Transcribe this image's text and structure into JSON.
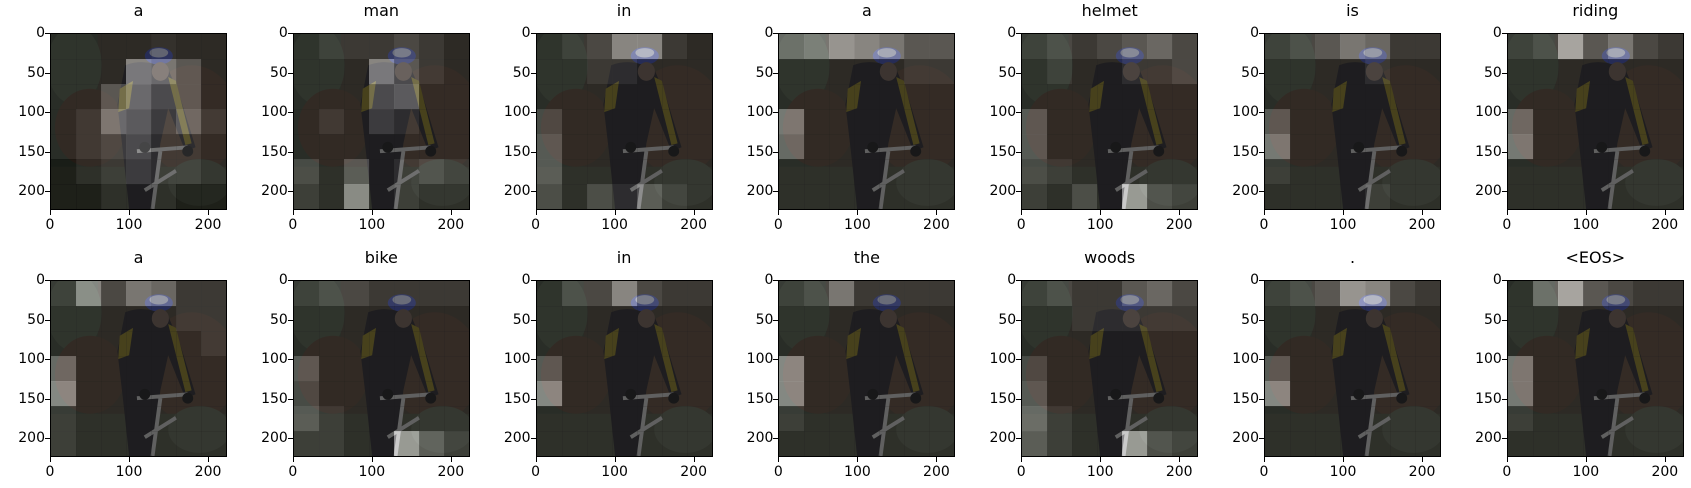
{
  "chart_data": {
    "type": "heatmap",
    "description_of_overlay": "",
    "x_ticks": [
      0,
      100,
      200
    ],
    "y_ticks": [
      0,
      50,
      100,
      150,
      200
    ],
    "xlim": [
      0,
      224
    ],
    "ylim": [
      224,
      0
    ],
    "grid_size": [
      7,
      7
    ],
    "colormap": "gray",
    "overlay_alpha": 0.6,
    "panels": [
      {
        "title": "a",
        "attention": [
          [
            0.1,
            0.1,
            0.1,
            0.1,
            0.15,
            0.1,
            0.1
          ],
          [
            0.1,
            0.1,
            0.1,
            0.7,
            0.6,
            0.4,
            0.1
          ],
          [
            0.1,
            0.1,
            0.4,
            0.6,
            0.4,
            0.4,
            0.1
          ],
          [
            0.1,
            0.2,
            0.6,
            0.5,
            0.3,
            0.5,
            0.2
          ],
          [
            0.1,
            0.2,
            0.3,
            0.4,
            0.2,
            0.2,
            0.1
          ],
          [
            0,
            0.1,
            0.2,
            0.3,
            0.2,
            0.2,
            0.1
          ],
          [
            0,
            0,
            0.1,
            0.1,
            0.1,
            0,
            0
          ]
        ]
      },
      {
        "title": "man",
        "attention": [
          [
            0.1,
            0.2,
            0.2,
            0.2,
            0.3,
            0.2,
            0.1
          ],
          [
            0.1,
            0.1,
            0.1,
            0.7,
            0.4,
            0.2,
            0.1
          ],
          [
            0.1,
            0.1,
            0.1,
            0.4,
            0.5,
            0.1,
            0.1
          ],
          [
            0.1,
            0.2,
            0.1,
            0.3,
            0.2,
            0.1,
            0.1
          ],
          [
            0.1,
            0.1,
            0.1,
            0.1,
            0.1,
            0.1,
            0.1
          ],
          [
            0.3,
            0.1,
            0.4,
            0.1,
            0.2,
            0.3,
            0.2
          ],
          [
            0.2,
            0.1,
            0.7,
            0.1,
            0.2,
            0.1,
            0.1
          ]
        ]
      },
      {
        "title": "in",
        "attention": [
          [
            0.1,
            0.2,
            0.3,
            0.7,
            0.7,
            0.2,
            0.1
          ],
          [
            0.1,
            0.1,
            0.2,
            0.2,
            0.1,
            0.1,
            0.1
          ],
          [
            0.1,
            0.1,
            0.1,
            0.1,
            0.1,
            0.1,
            0.1
          ],
          [
            0.3,
            0.1,
            0.1,
            0.1,
            0.1,
            0.1,
            0.1
          ],
          [
            0.4,
            0.1,
            0.1,
            0.1,
            0.1,
            0.1,
            0.1
          ],
          [
            0.4,
            0.1,
            0.1,
            0.1,
            0.1,
            0.1,
            0.1
          ],
          [
            0.3,
            0.1,
            0.3,
            0.2,
            0.4,
            0.2,
            0.1
          ]
        ]
      },
      {
        "title": "a",
        "attention": [
          [
            0.5,
            0.6,
            0.8,
            0.7,
            0.6,
            0.4,
            0.4
          ],
          [
            0.1,
            0.1,
            0.1,
            0.1,
            0.1,
            0.2,
            0.2
          ],
          [
            0.1,
            0.1,
            0.1,
            0.1,
            0.1,
            0.1,
            0.1
          ],
          [
            0.6,
            0.1,
            0.1,
            0.1,
            0.1,
            0.1,
            0.1
          ],
          [
            0.5,
            0.1,
            0.1,
            0.1,
            0.1,
            0.1,
            0.1
          ],
          [
            0.1,
            0.1,
            0.1,
            0.1,
            0.1,
            0.1,
            0.1
          ],
          [
            0.1,
            0.1,
            0.1,
            0.1,
            0.1,
            0.1,
            0.1
          ]
        ]
      },
      {
        "title": "helmet",
        "attention": [
          [
            0.2,
            0.3,
            0.2,
            0.3,
            0.4,
            0.5,
            0.3
          ],
          [
            0.1,
            0.2,
            0.1,
            0.1,
            0.2,
            0.2,
            0.3
          ],
          [
            0.1,
            0.1,
            0.1,
            0.1,
            0.1,
            0.1,
            0.1
          ],
          [
            0.4,
            0.1,
            0.1,
            0.1,
            0.1,
            0.1,
            0.1
          ],
          [
            0.4,
            0.1,
            0.1,
            0.1,
            0.1,
            0.1,
            0.1
          ],
          [
            0.3,
            0.2,
            0.1,
            0.1,
            0.1,
            0.1,
            0.1
          ],
          [
            0.2,
            0.1,
            0.3,
            0.1,
            0.8,
            0.3,
            0.2
          ]
        ]
      },
      {
        "title": "is",
        "attention": [
          [
            0.2,
            0.3,
            0.4,
            0.6,
            0.5,
            0.2,
            0.2
          ],
          [
            0.1,
            0.1,
            0.1,
            0.1,
            0.2,
            0.1,
            0.1
          ],
          [
            0.1,
            0.1,
            0.1,
            0.1,
            0.1,
            0.1,
            0.1
          ],
          [
            0.4,
            0.1,
            0.1,
            0.1,
            0.1,
            0.1,
            0.1
          ],
          [
            0.6,
            0.1,
            0.1,
            0.1,
            0.1,
            0.1,
            0.1
          ],
          [
            0.2,
            0.1,
            0.1,
            0.1,
            0.1,
            0.1,
            0.1
          ],
          [
            0.1,
            0.1,
            0.1,
            0.1,
            0.2,
            0.1,
            0.1
          ]
        ]
      },
      {
        "title": "riding",
        "attention": [
          [
            0.2,
            0.3,
            0.9,
            0.4,
            0.6,
            0.3,
            0.2
          ],
          [
            0.1,
            0.1,
            0.1,
            0.1,
            0.1,
            0.1,
            0.1
          ],
          [
            0.1,
            0.1,
            0.1,
            0.1,
            0.1,
            0.1,
            0.1
          ],
          [
            0.5,
            0.1,
            0.1,
            0.1,
            0.1,
            0.1,
            0.1
          ],
          [
            0.6,
            0.1,
            0.1,
            0.1,
            0.1,
            0.1,
            0.1
          ],
          [
            0.1,
            0.1,
            0.1,
            0.1,
            0.1,
            0.1,
            0.1
          ],
          [
            0.1,
            0.1,
            0.1,
            0.1,
            0.1,
            0.1,
            0.1
          ]
        ]
      },
      {
        "title": "a",
        "attention": [
          [
            0.2,
            0.7,
            0.3,
            0.6,
            0.5,
            0.2,
            0.2
          ],
          [
            0.1,
            0.1,
            0.1,
            0.1,
            0.1,
            0.2,
            0.2
          ],
          [
            0.1,
            0.1,
            0.1,
            0.1,
            0.1,
            0.1,
            0.2
          ],
          [
            0.5,
            0.1,
            0.1,
            0.1,
            0.1,
            0.1,
            0.1
          ],
          [
            0.7,
            0.1,
            0.1,
            0.1,
            0.1,
            0.1,
            0.1
          ],
          [
            0.2,
            0.1,
            0.1,
            0.1,
            0.1,
            0.1,
            0.1
          ],
          [
            0.2,
            0.1,
            0.1,
            0.1,
            0.1,
            0.1,
            0.1
          ]
        ]
      },
      {
        "title": "bike",
        "attention": [
          [
            0.2,
            0.3,
            0.3,
            0.2,
            0.2,
            0.2,
            0.2
          ],
          [
            0.1,
            0.1,
            0.1,
            0.1,
            0.1,
            0.1,
            0.1
          ],
          [
            0.1,
            0.1,
            0.1,
            0.1,
            0.1,
            0.1,
            0.1
          ],
          [
            0.4,
            0.1,
            0.1,
            0.1,
            0.1,
            0.1,
            0.1
          ],
          [
            0.3,
            0.1,
            0.1,
            0.1,
            0.1,
            0.1,
            0.1
          ],
          [
            0.4,
            0.2,
            0.1,
            0.1,
            0.1,
            0.1,
            0.1
          ],
          [
            0.2,
            0.2,
            0.1,
            0.1,
            0.8,
            0.4,
            0.2
          ]
        ]
      },
      {
        "title": "in",
        "attention": [
          [
            0.1,
            0.3,
            0.3,
            0.7,
            0.3,
            0.2,
            0.2
          ],
          [
            0.1,
            0.1,
            0.1,
            0.1,
            0.1,
            0.1,
            0.1
          ],
          [
            0.1,
            0.1,
            0.1,
            0.1,
            0.1,
            0.1,
            0.1
          ],
          [
            0.4,
            0.1,
            0.1,
            0.1,
            0.1,
            0.1,
            0.1
          ],
          [
            0.7,
            0.1,
            0.1,
            0.1,
            0.1,
            0.1,
            0.1
          ],
          [
            0.1,
            0.1,
            0.1,
            0.1,
            0.1,
            0.1,
            0.1
          ],
          [
            0.1,
            0.1,
            0.1,
            0.1,
            0.1,
            0.1,
            0.1
          ]
        ]
      },
      {
        "title": "the",
        "attention": [
          [
            0.2,
            0.3,
            0.6,
            0.2,
            0.2,
            0.2,
            0.2
          ],
          [
            0.1,
            0.1,
            0.1,
            0.1,
            0.1,
            0.1,
            0.1
          ],
          [
            0.1,
            0.1,
            0.1,
            0.1,
            0.1,
            0.1,
            0.1
          ],
          [
            0.7,
            0.1,
            0.1,
            0.1,
            0.1,
            0.1,
            0.1
          ],
          [
            0.7,
            0.1,
            0.1,
            0.1,
            0.1,
            0.1,
            0.1
          ],
          [
            0.2,
            0.1,
            0.1,
            0.1,
            0.1,
            0.1,
            0.1
          ],
          [
            0.1,
            0.1,
            0.1,
            0.1,
            0.1,
            0.1,
            0.1
          ]
        ]
      },
      {
        "title": "woods",
        "attention": [
          [
            0.2,
            0.3,
            0.2,
            0.2,
            0.4,
            0.5,
            0.3
          ],
          [
            0.1,
            0.1,
            0.2,
            0.2,
            0.2,
            0.2,
            0.2
          ],
          [
            0.1,
            0.1,
            0.1,
            0.1,
            0.1,
            0.1,
            0.1
          ],
          [
            0.3,
            0.1,
            0.1,
            0.1,
            0.1,
            0.1,
            0.1
          ],
          [
            0.4,
            0.1,
            0.1,
            0.1,
            0.1,
            0.1,
            0.1
          ],
          [
            0.5,
            0.2,
            0.1,
            0.1,
            0.1,
            0.1,
            0.1
          ],
          [
            0.4,
            0.2,
            0.1,
            0.1,
            0.8,
            0.3,
            0.2
          ]
        ]
      },
      {
        "title": ".",
        "attention": [
          [
            0.2,
            0.3,
            0.4,
            0.8,
            0.7,
            0.3,
            0.2
          ],
          [
            0.1,
            0.1,
            0.1,
            0.1,
            0.1,
            0.1,
            0.1
          ],
          [
            0.1,
            0.1,
            0.1,
            0.1,
            0.1,
            0.1,
            0.1
          ],
          [
            0.4,
            0.1,
            0.1,
            0.1,
            0.1,
            0.1,
            0.1
          ],
          [
            0.7,
            0.1,
            0.1,
            0.1,
            0.1,
            0.1,
            0.1
          ],
          [
            0.1,
            0.1,
            0.1,
            0.1,
            0.1,
            0.1,
            0.1
          ],
          [
            0.1,
            0.1,
            0.1,
            0.1,
            0.1,
            0.1,
            0.1
          ]
        ]
      },
      {
        "title": "<EOS>",
        "attention": [
          [
            0.1,
            0.5,
            0.9,
            0.4,
            0.3,
            0.2,
            0.2
          ],
          [
            0.1,
            0.1,
            0.1,
            0.1,
            0.1,
            0.1,
            0.1
          ],
          [
            0.1,
            0.1,
            0.1,
            0.1,
            0.1,
            0.1,
            0.1
          ],
          [
            0.6,
            0.1,
            0.1,
            0.1,
            0.1,
            0.1,
            0.1
          ],
          [
            0.6,
            0.1,
            0.1,
            0.1,
            0.1,
            0.1,
            0.1
          ],
          [
            0.2,
            0.1,
            0.1,
            0.1,
            0.1,
            0.1,
            0.1
          ],
          [
            0.1,
            0.1,
            0.1,
            0.1,
            0.1,
            0.1,
            0.1
          ]
        ]
      }
    ]
  }
}
